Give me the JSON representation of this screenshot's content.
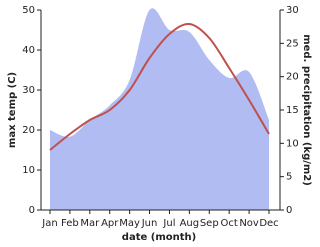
{
  "chart_data": {
    "type": "line",
    "x_label": "date (month)",
    "y_label": "max temp (C)",
    "y2_label": "med. precipitation (kg/m2)",
    "categories": [
      "Jan",
      "Feb",
      "Mar",
      "Apr",
      "May",
      "Jun",
      "Jul",
      "Aug",
      "Sep",
      "Oct",
      "Nov",
      "Dec"
    ],
    "series": [
      {
        "name": "med. precipitation (kg/m2)",
        "color": "#b0bcf2",
        "fill": true,
        "axis": "y2",
        "values": [
          12,
          11,
          13.5,
          15.7,
          19.5,
          30,
          27,
          26.7,
          22.5,
          19.8,
          20.7,
          13.5
        ]
      },
      {
        "name": "max temp (C)",
        "color": "#c0504d",
        "values": [
          15,
          19,
          22.5,
          25,
          30,
          38,
          44,
          46.5,
          43,
          35.5,
          27.5,
          19
        ]
      }
    ],
    "ylim": [
      0,
      50
    ],
    "yticks": [
      0,
      10,
      20,
      30,
      40,
      50
    ],
    "y2lim": [
      0,
      30
    ],
    "y2ticks": [
      0,
      5,
      10,
      15,
      20,
      25,
      30
    ]
  }
}
